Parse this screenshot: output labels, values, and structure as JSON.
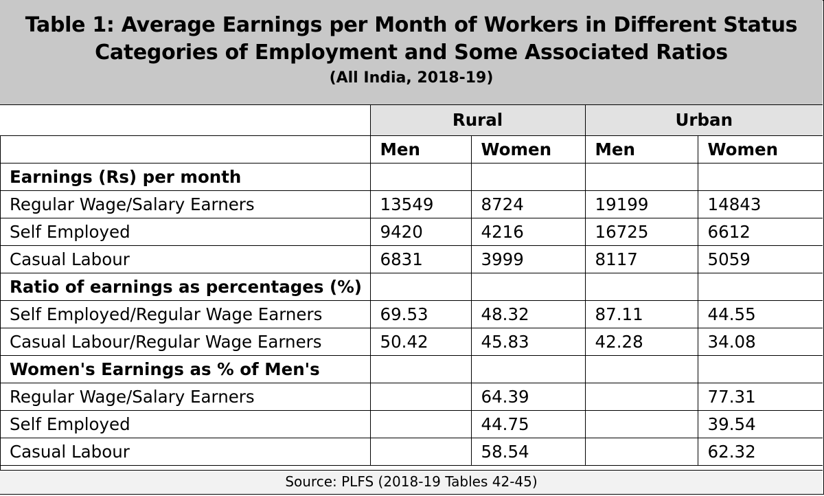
{
  "title": {
    "line1": "Table 1: Average Earnings per Month of Workers in Different Status",
    "line2": "Categories of Employment and Some Associated Ratios",
    "subtitle": "(All India, 2018-19)"
  },
  "header": {
    "groups": [
      "Rural",
      "Urban"
    ],
    "subs": [
      "Men",
      "Women",
      "Men",
      "Women"
    ]
  },
  "sections": [
    {
      "title": "Earnings (Rs) per month",
      "rows": [
        {
          "label": "Regular Wage/Salary Earners",
          "values": [
            "13549",
            "8724",
            "19199",
            "14843"
          ]
        },
        {
          "label": "Self Employed",
          "values": [
            "9420",
            "4216",
            "16725",
            "6612"
          ]
        },
        {
          "label": "Casual Labour",
          "values": [
            "6831",
            "3999",
            "8117",
            "5059"
          ]
        }
      ]
    },
    {
      "title": "Ratio of earnings as percentages (%)",
      "rows": [
        {
          "label": "Self Employed/Regular Wage Earners",
          "values": [
            "69.53",
            "48.32",
            "87.11",
            "44.55"
          ]
        },
        {
          "label": "Casual Labour/Regular Wage Earners",
          "values": [
            "50.42",
            "45.83",
            "42.28",
            "34.08"
          ]
        }
      ]
    },
    {
      "title": "Women's Earnings as % of Men's",
      "rows": [
        {
          "label": "Regular Wage/Salary Earners",
          "values": [
            "",
            "64.39",
            "",
            "77.31"
          ]
        },
        {
          "label": "Self Employed",
          "values": [
            "",
            "44.75",
            "",
            "39.54"
          ]
        },
        {
          "label": "Casual Labour",
          "values": [
            "",
            "58.54",
            "",
            "62.32"
          ]
        }
      ]
    }
  ],
  "source": "Source: PLFS (2018-19 Tables 42-45)"
}
